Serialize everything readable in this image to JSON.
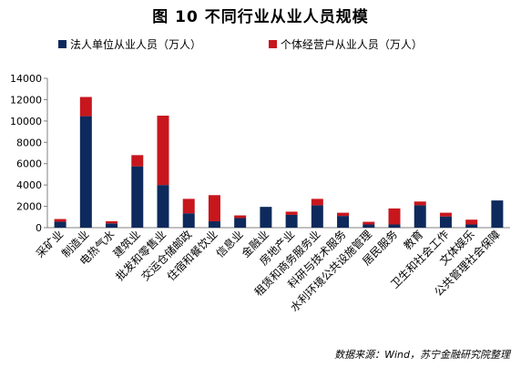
{
  "title": "图 10  不同行业从业人员规模",
  "source": "数据来源：Wind，苏宁金融研究院整理",
  "colors": {
    "series1": "#0e2a5c",
    "series2": "#c8161d",
    "axis": "#808080"
  },
  "chart_data": {
    "type": "bar",
    "stacked": true,
    "categories": [
      "采矿业",
      "制造业",
      "电热气水",
      "建筑业",
      "批发和零售业",
      "交运仓储邮政",
      "住宿和餐饮业",
      "信息业",
      "金融业",
      "房地产业",
      "租赁和商务服务业",
      "科研与技术服务",
      "水利环境公共设施管理",
      "居民服务",
      "教育",
      "卫生和社会工作",
      "文体娱乐",
      "公共管理社会保障"
    ],
    "series": [
      {
        "name": "法人单位从业人员（万人）",
        "values": [
          560,
          10450,
          400,
          5750,
          4000,
          1350,
          600,
          900,
          1950,
          1200,
          2100,
          1100,
          300,
          300,
          2100,
          1050,
          300,
          2550
        ]
      },
      {
        "name": "个体经营户从业人员（万人）",
        "values": [
          250,
          1800,
          200,
          1050,
          6500,
          1350,
          2450,
          250,
          0,
          300,
          600,
          300,
          250,
          1500,
          350,
          350,
          450,
          0
        ]
      }
    ],
    "yticks": [
      0,
      2000,
      4000,
      6000,
      8000,
      10000,
      12000,
      14000
    ],
    "ylim": [
      0,
      14000
    ],
    "legend": "top"
  }
}
